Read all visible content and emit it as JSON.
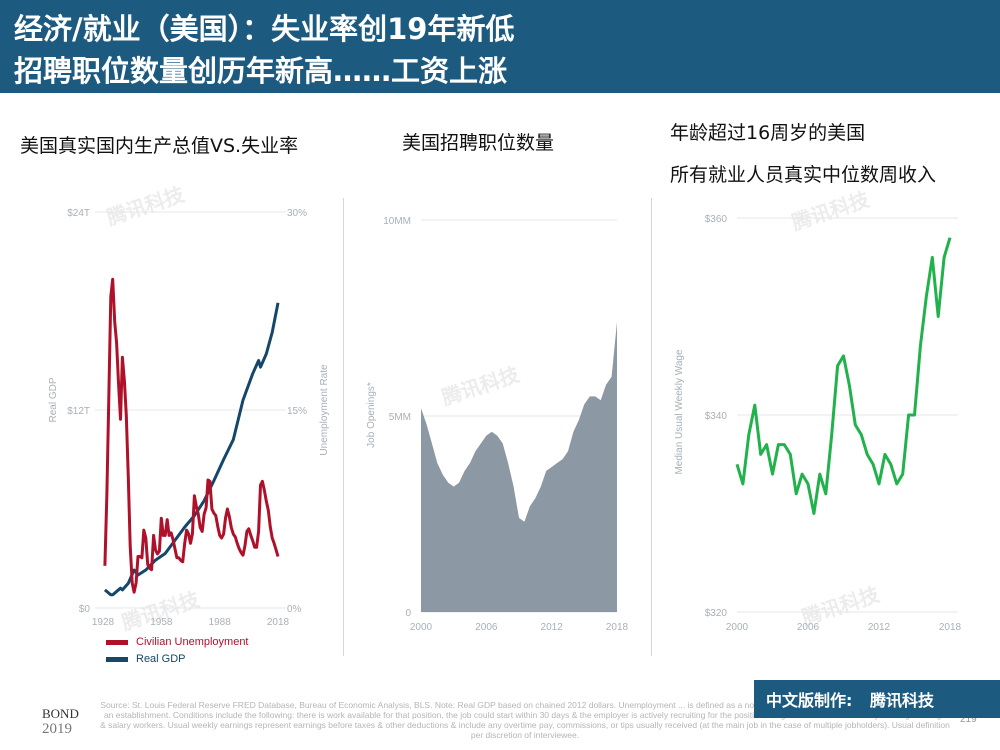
{
  "header": {
    "line1": "经济/就业（美国）：失业率创19年新低",
    "line2": "招聘职位数量创历年新高……工资上涨"
  },
  "panels": {
    "p1_title": "美国真实国内生产总值VS.失业率",
    "p2_title": "美国招聘职位数量",
    "p3_title1": "年龄超过16周岁的美国",
    "p3_title2": "所有就业人员真实中位数周收入"
  },
  "watermark": "腾讯科技",
  "footer": {
    "source": "Source: St. Louis Federal Reserve FRED Database, Bureau of Economic Analysis, BLS. Note: Real GDP based on chained 2012 dollars. Unemployment ... is defined as a non-farm specific position of employment to be filled at an establishment. Conditions include the following: there is work available for that position, the job could start within 30 days & the employer is actively recruiting for the position. Wages refers to usual weekly earnings of wage & salary workers. Usual weekly earnings represent earnings before taxes & other deductions & include any overtime pay, commissions, or tips usually received (at the main job in the case of multiple jobholders). Usual definition per discretion of interviewee.",
    "page_number": "219",
    "bond": "BOND",
    "bond_sub": "2019",
    "credit_prefix": "中文版制作:",
    "credit_brand": "腾讯科技"
  },
  "colors": {
    "header": "#1c5a80",
    "unemployment": "#b0112a",
    "gdp": "#14476a",
    "openings": "#8c99a5",
    "wage": "#22b24c"
  },
  "chart_data": [
    {
      "type": "line",
      "title": "美国真实国内生产总值VS.失业率",
      "x_ticks": [
        "1928",
        "1958",
        "1988",
        "2018"
      ],
      "xlim": [
        1928,
        2018
      ],
      "ylabel_left": "Real GDP",
      "ylabel_right": "Unemployment Rate",
      "y_left_ticks": [
        "$0",
        "$12T",
        "$24T"
      ],
      "y_right_ticks": [
        "0%",
        "15%",
        "30%"
      ],
      "ylim_left": [
        0,
        24
      ],
      "ylim_right": [
        0,
        30
      ],
      "series": [
        {
          "name": "Civilian Unemployment",
          "axis": "right",
          "color": "#b0112a",
          "x": [
            1929,
            1930,
            1931,
            1932,
            1933,
            1934,
            1935,
            1936,
            1937,
            1938,
            1939,
            1940,
            1941,
            1942,
            1943,
            1944,
            1945,
            1946,
            1947,
            1948,
            1949,
            1950,
            1951,
            1952,
            1953,
            1954,
            1955,
            1956,
            1957,
            1958,
            1959,
            1960,
            1961,
            1962,
            1963,
            1964,
            1965,
            1966,
            1967,
            1968,
            1969,
            1970,
            1971,
            1972,
            1973,
            1974,
            1975,
            1976,
            1977,
            1978,
            1979,
            1980,
            1981,
            1982,
            1983,
            1984,
            1985,
            1986,
            1987,
            1988,
            1989,
            1990,
            1991,
            1992,
            1993,
            1994,
            1995,
            1996,
            1997,
            1998,
            1999,
            2000,
            2001,
            2002,
            2003,
            2004,
            2005,
            2006,
            2007,
            2008,
            2009,
            2010,
            2011,
            2012,
            2013,
            2014,
            2015,
            2016,
            2017,
            2018
          ],
          "values": [
            3.2,
            8.7,
            15.9,
            23.6,
            24.9,
            21.7,
            20.1,
            16.9,
            14.3,
            19.0,
            17.2,
            14.6,
            9.9,
            4.7,
            1.9,
            1.2,
            1.9,
            3.9,
            3.9,
            3.8,
            5.9,
            5.3,
            3.3,
            3.0,
            2.9,
            5.5,
            4.4,
            4.1,
            4.3,
            6.8,
            5.5,
            5.5,
            6.7,
            5.5,
            5.7,
            5.2,
            4.5,
            3.8,
            3.8,
            3.6,
            3.5,
            4.9,
            5.9,
            5.6,
            4.9,
            5.6,
            8.5,
            7.7,
            7.1,
            6.1,
            5.8,
            7.1,
            7.6,
            9.7,
            9.6,
            7.5,
            7.2,
            7.0,
            6.2,
            5.5,
            5.3,
            5.6,
            6.8,
            7.5,
            6.9,
            6.1,
            5.6,
            5.4,
            4.9,
            4.5,
            4.2,
            4.0,
            4.7,
            5.8,
            6.0,
            5.5,
            5.1,
            4.6,
            4.6,
            5.8,
            9.3,
            9.6,
            8.9,
            8.1,
            7.4,
            6.2,
            5.3,
            4.9,
            4.4,
            3.9
          ]
        },
        {
          "name": "Real GDP",
          "axis": "left",
          "color": "#14476a",
          "x": [
            1929,
            1932,
            1933,
            1937,
            1938,
            1941,
            1944,
            1946,
            1950,
            1955,
            1960,
            1965,
            1970,
            1975,
            1980,
            1985,
            1990,
            1995,
            2000,
            2005,
            2008,
            2009,
            2012,
            2015,
            2018
          ],
          "values": [
            1.1,
            0.8,
            0.8,
            1.2,
            1.1,
            1.5,
            2.3,
            2.0,
            2.3,
            2.9,
            3.3,
            4.1,
            4.9,
            5.6,
            6.5,
            7.7,
            9.0,
            10.2,
            12.6,
            14.2,
            15.0,
            14.6,
            15.4,
            16.7,
            18.5
          ]
        }
      ]
    },
    {
      "type": "area",
      "title": "美国招聘职位数量",
      "ylabel": "Job Openings*",
      "x_ticks": [
        "2000",
        "2006",
        "2012",
        "2018"
      ],
      "xlim": [
        2000,
        2018
      ],
      "y_ticks": [
        "0",
        "5MM",
        "10MM"
      ],
      "ylim": [
        0,
        10
      ],
      "series": [
        {
          "name": "",
          "color": "#8c99a5",
          "x": [
            2000,
            2000.5,
            2001,
            2001.5,
            2002,
            2002.5,
            2003,
            2003.5,
            2004,
            2004.5,
            2005,
            2005.5,
            2006,
            2006.5,
            2007,
            2007.5,
            2008,
            2008.5,
            2009,
            2009.5,
            2010,
            2010.5,
            2011,
            2011.5,
            2012,
            2012.5,
            2013,
            2013.5,
            2014,
            2014.5,
            2015,
            2015.5,
            2016,
            2016.5,
            2017,
            2017.5,
            2018
          ],
          "values": [
            5.2,
            4.8,
            4.3,
            3.8,
            3.5,
            3.3,
            3.2,
            3.3,
            3.6,
            3.8,
            4.1,
            4.3,
            4.5,
            4.6,
            4.5,
            4.3,
            3.8,
            3.2,
            2.4,
            2.3,
            2.7,
            2.9,
            3.2,
            3.6,
            3.7,
            3.8,
            3.9,
            4.1,
            4.6,
            4.9,
            5.3,
            5.5,
            5.5,
            5.4,
            5.8,
            6.0,
            7.4
          ]
        }
      ]
    },
    {
      "type": "line",
      "title": "年龄超过16周岁的美国 所有就业人员真实中位数周收入",
      "ylabel": "Median Usual Weekly Wage",
      "x_ticks": [
        "2000",
        "2006",
        "2012",
        "2018"
      ],
      "xlim": [
        2000,
        2018
      ],
      "y_ticks": [
        "$320",
        "$340",
        "$360"
      ],
      "ylim": [
        320,
        360
      ],
      "series": [
        {
          "name": "",
          "color": "#22b24c",
          "x": [
            2000,
            2000.5,
            2001,
            2001.5,
            2002,
            2002.5,
            2003,
            2003.5,
            2004,
            2004.5,
            2005,
            2005.5,
            2006,
            2006.5,
            2007,
            2007.5,
            2008,
            2008.5,
            2009,
            2009.5,
            2010,
            2010.5,
            2011,
            2011.5,
            2012,
            2012.5,
            2013,
            2013.5,
            2014,
            2014.5,
            2015,
            2015.5,
            2016,
            2016.5,
            2017,
            2017.5,
            2018
          ],
          "values": [
            335,
            333,
            338,
            341,
            336,
            337,
            334,
            337,
            337,
            336,
            332,
            334,
            333,
            330,
            334,
            332,
            338,
            345,
            346,
            343,
            339,
            338,
            336,
            335,
            333,
            336,
            335,
            333,
            334,
            340,
            340,
            347,
            352,
            356,
            350,
            356,
            358
          ]
        }
      ]
    }
  ]
}
